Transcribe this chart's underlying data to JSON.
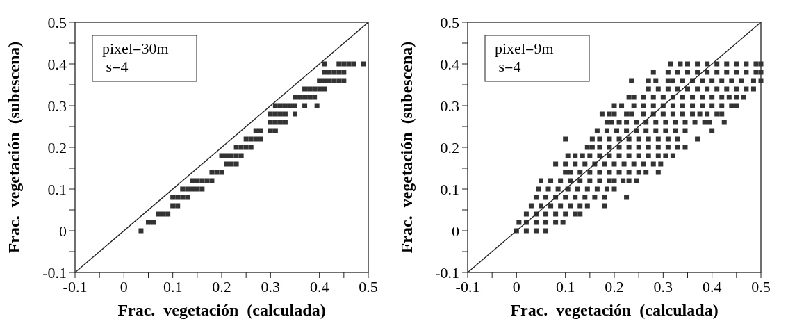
{
  "chart_data": [
    {
      "type": "scatter",
      "xlabel": "Frac.  vegetación  (calculada)",
      "ylabel": "Frac.  vegetación  (subescena)",
      "annotations": [
        "pixel=30m\n s=4"
      ],
      "grid": false,
      "xlim": [
        -0.1,
        0.5
      ],
      "ylim": [
        -0.1,
        0.5
      ],
      "xticks": [
        -0.1,
        {
          "value": -0.05,
          "label": null
        },
        0,
        {
          "value": 0.05,
          "label": null
        },
        0.1,
        {
          "value": 0.15,
          "label": null
        },
        0.2,
        {
          "value": 0.25,
          "label": null
        },
        0.3,
        {
          "value": 0.35,
          "label": null
        },
        0.4,
        {
          "value": 0.45,
          "label": null
        },
        0.5
      ],
      "yticks": [
        -0.1,
        {
          "value": -0.05,
          "label": null
        },
        0,
        {
          "value": 0.05,
          "label": null
        },
        0.1,
        {
          "value": 0.15,
          "label": null
        },
        0.2,
        {
          "value": 0.25,
          "label": null
        },
        0.3,
        {
          "value": 0.35,
          "label": null
        },
        0.4,
        {
          "value": 0.45,
          "label": null
        },
        0.5
      ],
      "series": [
        {
          "marker": "square",
          "color": "#333333",
          "x": [
            0.035,
            0.05,
            0.06,
            0.07,
            0.08,
            0.09,
            0.1,
            0.11,
            0.1,
            0.11,
            0.12,
            0.13,
            0.12,
            0.13,
            0.14,
            0.15,
            0.16,
            0.14,
            0.15,
            0.16,
            0.17,
            0.18,
            0.18,
            0.19,
            0.2,
            0.21,
            0.22,
            0.23,
            0.2,
            0.21,
            0.22,
            0.23,
            0.24,
            0.23,
            0.24,
            0.25,
            0.26,
            0.25,
            0.26,
            0.27,
            0.28,
            0.27,
            0.28,
            0.3,
            0.31,
            0.3,
            0.31,
            0.32,
            0.33,
            0.3,
            0.31,
            0.32,
            0.33,
            0.35,
            0.31,
            0.32,
            0.33,
            0.34,
            0.35,
            0.37,
            0.395,
            0.35,
            0.36,
            0.37,
            0.38,
            0.39,
            0.37,
            0.38,
            0.39,
            0.4,
            0.41,
            0.4,
            0.41,
            0.42,
            0.43,
            0.44,
            0.45,
            0.41,
            0.42,
            0.43,
            0.44,
            0.45,
            0.41,
            0.44,
            0.45,
            0.46,
            0.47,
            0.49
          ],
          "values": [
            0,
            0.02,
            0.02,
            0.04,
            0.04,
            0.04,
            0.06,
            0.06,
            0.08,
            0.08,
            0.08,
            0.08,
            0.1,
            0.1,
            0.1,
            0.1,
            0.1,
            0.12,
            0.12,
            0.12,
            0.12,
            0.12,
            0.14,
            0.14,
            0.14,
            0.16,
            0.16,
            0.16,
            0.18,
            0.18,
            0.18,
            0.18,
            0.18,
            0.2,
            0.2,
            0.2,
            0.2,
            0.22,
            0.22,
            0.22,
            0.22,
            0.24,
            0.24,
            0.24,
            0.24,
            0.26,
            0.26,
            0.26,
            0.26,
            0.28,
            0.28,
            0.28,
            0.28,
            0.28,
            0.3,
            0.3,
            0.3,
            0.3,
            0.3,
            0.3,
            0.3,
            0.32,
            0.32,
            0.32,
            0.32,
            0.32,
            0.34,
            0.34,
            0.34,
            0.34,
            0.34,
            0.36,
            0.36,
            0.36,
            0.36,
            0.36,
            0.36,
            0.38,
            0.38,
            0.38,
            0.38,
            0.38,
            0.4,
            0.4,
            0.4,
            0.4,
            0.4,
            0.4
          ]
        },
        {
          "type": "line",
          "color": "#222222",
          "x": [
            -0.1,
            0.5
          ],
          "values": [
            -0.1,
            0.5
          ]
        }
      ]
    },
    {
      "type": "scatter",
      "xlabel": "Frac.  vegetación  (calculada)",
      "ylabel": "Frac.  vegetación  (subescena)",
      "annotations": [
        "pixel=9m\n s=4"
      ],
      "grid": false,
      "xlim": [
        -0.1,
        0.5
      ],
      "ylim": [
        -0.1,
        0.5
      ],
      "xticks": [
        -0.1,
        {
          "value": -0.05,
          "label": null
        },
        0,
        {
          "value": 0.05,
          "label": null
        },
        0.1,
        {
          "value": 0.15,
          "label": null
        },
        0.2,
        {
          "value": 0.25,
          "label": null
        },
        0.3,
        {
          "value": 0.35,
          "label": null
        },
        0.4,
        {
          "value": 0.45,
          "label": null
        },
        0.5
      ],
      "yticks": [
        -0.1,
        {
          "value": -0.05,
          "label": null
        },
        0,
        {
          "value": 0.05,
          "label": null
        },
        0.1,
        {
          "value": 0.15,
          "label": null
        },
        0.2,
        {
          "value": 0.25,
          "label": null
        },
        0.3,
        {
          "value": 0.35,
          "label": null
        },
        0.4,
        {
          "value": 0.45,
          "label": null
        },
        0.5
      ],
      "series": [
        {
          "marker": "square",
          "color": "#333333",
          "x": [
            0,
            0.02,
            0.04,
            0.06,
            0.005,
            0.02,
            0.04,
            0.06,
            0.08,
            0.095,
            0.02,
            0.04,
            0.06,
            0.08,
            0.1,
            0.12,
            0.13,
            0.03,
            0.05,
            0.07,
            0.09,
            0.11,
            0.13,
            0.145,
            0.18,
            0.04,
            0.06,
            0.08,
            0.1,
            0.12,
            0.14,
            0.16,
            0.18,
            0.225,
            0.045,
            0.065,
            0.085,
            0.105,
            0.125,
            0.145,
            0.165,
            0.185,
            0.2,
            0.05,
            0.07,
            0.09,
            0.11,
            0.13,
            0.15,
            0.17,
            0.19,
            0.2,
            0.218,
            0.23,
            0.245,
            0.1,
            0.11,
            0.13,
            0.15,
            0.17,
            0.19,
            0.21,
            0.23,
            0.25,
            0.265,
            0.29,
            0.08,
            0.1,
            0.12,
            0.14,
            0.16,
            0.18,
            0.2,
            0.22,
            0.24,
            0.26,
            0.28,
            0.295,
            0.105,
            0.12,
            0.135,
            0.15,
            0.17,
            0.19,
            0.21,
            0.23,
            0.25,
            0.27,
            0.29,
            0.305,
            0.32,
            0.145,
            0.155,
            0.17,
            0.19,
            0.21,
            0.23,
            0.25,
            0.27,
            0.29,
            0.31,
            0.33,
            0.345,
            0.1,
            0.155,
            0.17,
            0.19,
            0.21,
            0.23,
            0.25,
            0.27,
            0.29,
            0.31,
            0.33,
            0.37,
            0.165,
            0.185,
            0.205,
            0.225,
            0.245,
            0.265,
            0.285,
            0.305,
            0.325,
            0.345,
            0.4,
            0.185,
            0.195,
            0.21,
            0.225,
            0.245,
            0.265,
            0.285,
            0.305,
            0.325,
            0.345,
            0.365,
            0.385,
            0.395,
            0.425,
            0.175,
            0.19,
            0.2,
            0.225,
            0.235,
            0.26,
            0.28,
            0.3,
            0.32,
            0.34,
            0.36,
            0.375,
            0.39,
            0.41,
            0.42,
            0.2,
            0.215,
            0.24,
            0.26,
            0.28,
            0.3,
            0.32,
            0.34,
            0.36,
            0.38,
            0.4,
            0.42,
            0.44,
            0.45,
            0.23,
            0.24,
            0.26,
            0.28,
            0.3,
            0.32,
            0.34,
            0.36,
            0.38,
            0.4,
            0.42,
            0.435,
            0.45,
            0.465,
            0.27,
            0.29,
            0.31,
            0.33,
            0.35,
            0.37,
            0.39,
            0.41,
            0.43,
            0.45,
            0.47,
            0.485,
            0.235,
            0.27,
            0.285,
            0.31,
            0.32,
            0.34,
            0.36,
            0.38,
            0.4,
            0.42,
            0.44,
            0.46,
            0.485,
            0.5,
            0.28,
            0.31,
            0.33,
            0.35,
            0.37,
            0.39,
            0.41,
            0.43,
            0.45,
            0.47,
            0.49,
            0.5,
            0.315,
            0.335,
            0.35,
            0.37,
            0.39,
            0.41,
            0.43,
            0.45,
            0.47,
            0.49,
            0.5
          ],
          "values": [
            0,
            0,
            0,
            0,
            0.02,
            0.02,
            0.02,
            0.02,
            0.02,
            0.02,
            0.04,
            0.04,
            0.04,
            0.04,
            0.04,
            0.04,
            0.04,
            0.06,
            0.06,
            0.06,
            0.06,
            0.06,
            0.06,
            0.06,
            0.06,
            0.08,
            0.08,
            0.08,
            0.08,
            0.08,
            0.08,
            0.08,
            0.08,
            0.08,
            0.1,
            0.1,
            0.1,
            0.1,
            0.1,
            0.1,
            0.1,
            0.1,
            0.1,
            0.12,
            0.12,
            0.12,
            0.12,
            0.12,
            0.12,
            0.12,
            0.12,
            0.12,
            0.12,
            0.12,
            0.12,
            0.14,
            0.14,
            0.14,
            0.14,
            0.14,
            0.14,
            0.14,
            0.14,
            0.14,
            0.14,
            0.14,
            0.16,
            0.16,
            0.16,
            0.16,
            0.16,
            0.16,
            0.16,
            0.16,
            0.16,
            0.16,
            0.16,
            0.16,
            0.18,
            0.18,
            0.18,
            0.18,
            0.18,
            0.18,
            0.18,
            0.18,
            0.18,
            0.18,
            0.18,
            0.18,
            0.18,
            0.2,
            0.2,
            0.2,
            0.2,
            0.2,
            0.2,
            0.2,
            0.2,
            0.2,
            0.2,
            0.2,
            0.2,
            0.22,
            0.22,
            0.22,
            0.22,
            0.22,
            0.22,
            0.22,
            0.22,
            0.22,
            0.22,
            0.22,
            0.22,
            0.24,
            0.24,
            0.24,
            0.24,
            0.24,
            0.24,
            0.24,
            0.24,
            0.24,
            0.24,
            0.24,
            0.26,
            0.26,
            0.26,
            0.26,
            0.26,
            0.26,
            0.26,
            0.26,
            0.26,
            0.26,
            0.26,
            0.26,
            0.26,
            0.26,
            0.28,
            0.28,
            0.28,
            0.28,
            0.28,
            0.28,
            0.28,
            0.28,
            0.28,
            0.28,
            0.28,
            0.28,
            0.28,
            0.28,
            0.28,
            0.3,
            0.3,
            0.3,
            0.3,
            0.3,
            0.3,
            0.3,
            0.3,
            0.3,
            0.3,
            0.3,
            0.3,
            0.3,
            0.3,
            0.32,
            0.32,
            0.32,
            0.32,
            0.32,
            0.32,
            0.32,
            0.32,
            0.32,
            0.32,
            0.32,
            0.32,
            0.32,
            0.32,
            0.34,
            0.34,
            0.34,
            0.34,
            0.34,
            0.34,
            0.34,
            0.34,
            0.34,
            0.34,
            0.34,
            0.34,
            0.36,
            0.36,
            0.36,
            0.36,
            0.36,
            0.36,
            0.36,
            0.36,
            0.36,
            0.36,
            0.36,
            0.36,
            0.36,
            0.36,
            0.38,
            0.38,
            0.38,
            0.38,
            0.38,
            0.38,
            0.38,
            0.38,
            0.38,
            0.38,
            0.38,
            0.38,
            0.4,
            0.4,
            0.4,
            0.4,
            0.4,
            0.4,
            0.4,
            0.4,
            0.4,
            0.4,
            0.4
          ]
        },
        {
          "type": "line",
          "color": "#222222",
          "x": [
            -0.1,
            0.5
          ],
          "values": [
            -0.1,
            0.5
          ]
        }
      ]
    }
  ]
}
